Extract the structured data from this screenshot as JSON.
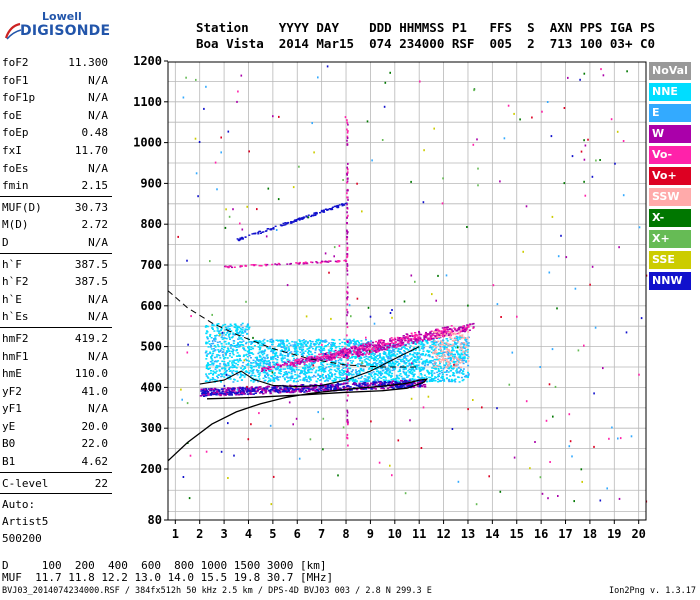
{
  "logo": {
    "line1": "Lowell",
    "line2": "DIGISONDE"
  },
  "header": {
    "line1": "Station    YYYY DAY    DDD HHMMSS P1   FFS  S  AXN PPS IGA PS",
    "line2": "Boa Vista  2014 Mar15  074 234000 RSF  005  2  713 100 03+ C0"
  },
  "params": {
    "group1": [
      {
        "name": "foF2",
        "value": "11.300"
      },
      {
        "name": "foF1",
        "value": "N/A"
      },
      {
        "name": "foF1p",
        "value": "N/A"
      },
      {
        "name": "foE",
        "value": "N/A"
      },
      {
        "name": "foEp",
        "value": "0.48"
      },
      {
        "name": "fxI",
        "value": "11.70"
      },
      {
        "name": "foEs",
        "value": "N/A"
      },
      {
        "name": "fmin",
        "value": "2.15"
      }
    ],
    "group2": [
      {
        "name": "MUF(D)",
        "value": "30.73"
      },
      {
        "name": "M(D)",
        "value": "2.72"
      },
      {
        "name": "D",
        "value": "N/A"
      }
    ],
    "group3": [
      {
        "name": "h`F",
        "value": "387.5"
      },
      {
        "name": "h`F2",
        "value": "387.5"
      },
      {
        "name": "h`E",
        "value": "N/A"
      },
      {
        "name": "h`Es",
        "value": "N/A"
      }
    ],
    "group4": [
      {
        "name": "hmF2",
        "value": "419.2"
      },
      {
        "name": "hmF1",
        "value": "N/A"
      },
      {
        "name": "hmE",
        "value": "110.0"
      },
      {
        "name": "yF2",
        "value": "41.0"
      },
      {
        "name": "yF1",
        "value": "N/A"
      },
      {
        "name": "yE",
        "value": "20.0"
      },
      {
        "name": "B0",
        "value": "22.0"
      },
      {
        "name": "B1",
        "value": "4.62"
      }
    ],
    "group5": [
      {
        "name": "C-level",
        "value": "22"
      }
    ],
    "auto": [
      "Auto:",
      "Artist5",
      "500200"
    ]
  },
  "legend": [
    {
      "label": "NoVal",
      "color": "#999999"
    },
    {
      "label": "NNE",
      "color": "#00ddff"
    },
    {
      "label": "E",
      "color": "#33aaff"
    },
    {
      "label": "W",
      "color": "#aa00aa"
    },
    {
      "label": "Vo-",
      "color": "#ff22aa"
    },
    {
      "label": "Vo+",
      "color": "#dd0022"
    },
    {
      "label": "SSW",
      "color": "#ffaaaa"
    },
    {
      "label": "X-",
      "color": "#007700"
    },
    {
      "label": "X+",
      "color": "#66bb55"
    },
    {
      "label": "SSE",
      "color": "#cccc00"
    },
    {
      "label": "NNW",
      "color": "#1111cc"
    }
  ],
  "footer": {
    "line1": "D     100  200  400  600  800 1000 1500 3000 [km]",
    "line2": "MUF  11.7 11.8 12.2 13.0 14.0 15.5 19.8 30.7 [MHz]",
    "line3": "BVJ03_2014074234000.RSF / 384fx512h 50 kHz 2.5 km / DPS-4D BVJ03 003 / 2.8 N 299.3 E",
    "version": "Ion2Png v. 1.3.17"
  },
  "chart_data": {
    "type": "scatter",
    "xlim": [
      0.7,
      20.3
    ],
    "ylim": [
      80,
      1200
    ],
    "xticks": [
      "1",
      "2",
      "3",
      "4",
      "5",
      "6",
      "7",
      "8",
      "9",
      "10",
      "11",
      "12",
      "13",
      "14",
      "15",
      "16",
      "17",
      "18",
      "19",
      "20"
    ],
    "yticks": [
      "80",
      "200",
      "300",
      "400",
      "500",
      "600",
      "700",
      "800",
      "900",
      "1000",
      "1100",
      "1200"
    ],
    "grid": true,
    "profile_curve": [
      [
        0.7,
        220
      ],
      [
        1.5,
        265
      ],
      [
        2.5,
        310
      ],
      [
        3.5,
        340
      ],
      [
        4.5,
        360
      ],
      [
        5.5,
        375
      ],
      [
        6.5,
        385
      ],
      [
        7.5,
        392
      ],
      [
        8.5,
        398
      ],
      [
        9.5,
        403
      ],
      [
        10.5,
        410
      ],
      [
        11,
        418
      ],
      [
        11.3,
        420
      ],
      [
        11.2,
        413
      ],
      [
        10.5,
        398
      ],
      [
        9.5,
        392
      ],
      [
        8,
        388
      ],
      [
        6,
        381
      ],
      [
        4,
        375
      ],
      [
        2.3,
        372
      ]
    ],
    "dashed_curve": [
      [
        0.7,
        637
      ],
      [
        1.5,
        595
      ],
      [
        2.5,
        558
      ],
      [
        3.5,
        530
      ],
      [
        5,
        495
      ],
      [
        6.5,
        470
      ],
      [
        8,
        455
      ],
      [
        9.5,
        450
      ],
      [
        11,
        450
      ]
    ],
    "trace_curve": [
      [
        2,
        408
      ],
      [
        3,
        418
      ],
      [
        3.7,
        440
      ],
      [
        4.2,
        420
      ],
      [
        5,
        405
      ],
      [
        6,
        402
      ],
      [
        7,
        405
      ],
      [
        8,
        418
      ],
      [
        9,
        440
      ],
      [
        10,
        470
      ],
      [
        11,
        500
      ]
    ]
  }
}
